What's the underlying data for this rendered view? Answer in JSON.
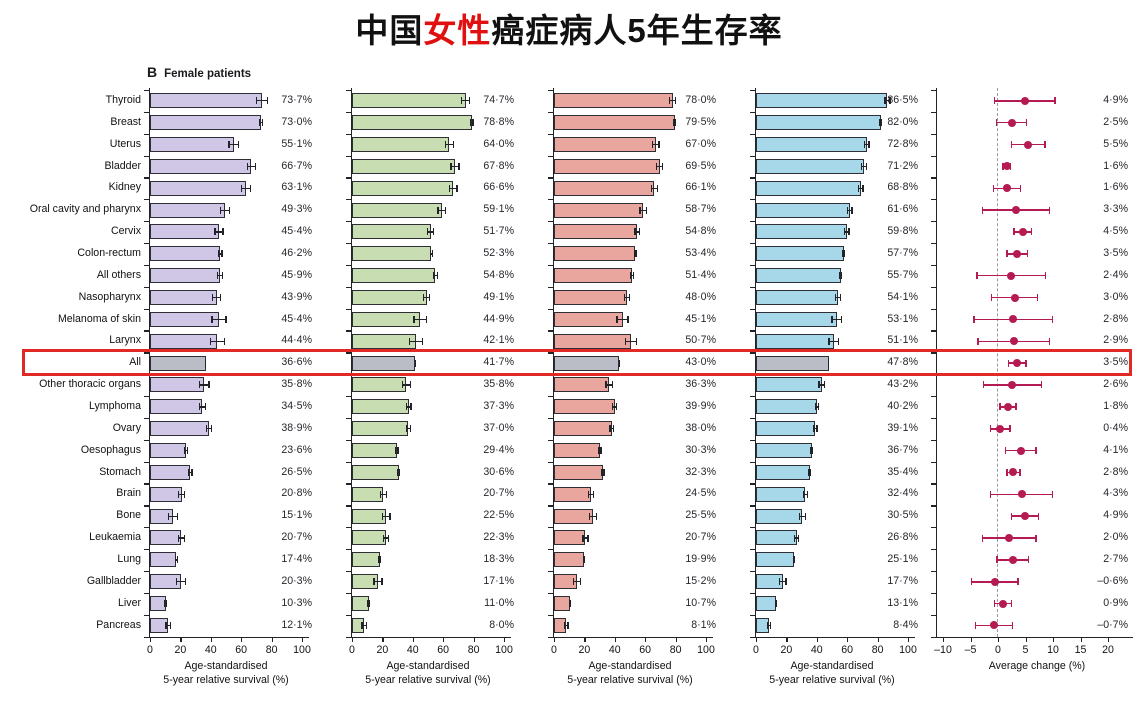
{
  "title": {
    "prefix": "中国",
    "highlight": "女性",
    "suffix": "癌症病人5年生存率"
  },
  "panel_label": {
    "letter": "B",
    "text": "Female patients"
  },
  "chart_data": {
    "type": "bar",
    "orientation": "horizontal",
    "categories": [
      "Thyroid",
      "Breast",
      "Uterus",
      "Bladder",
      "Kidney",
      "Oral cavity and pharynx",
      "Cervix",
      "Colon-rectum",
      "All others",
      "Nasopharynx",
      "Melanoma of skin",
      "Larynx",
      "All",
      "Other thoracic organs",
      "Lymphoma",
      "Ovary",
      "Oesophagus",
      "Stomach",
      "Brain",
      "Bone",
      "Leukaemia",
      "Lung",
      "Gallbladder",
      "Liver",
      "Pancreas"
    ],
    "highlight_row": "All",
    "highlight_row_index": 12,
    "highlight_box_color": "#e12a26",
    "all_row_bar_color": "#babdc5",
    "series": [
      {
        "name": "survival-panel-1",
        "color": "#cfc7e5",
        "values": [
          73.7,
          73.0,
          55.1,
          66.7,
          63.1,
          49.3,
          45.4,
          46.2,
          45.9,
          43.9,
          45.4,
          44.4,
          36.6,
          35.8,
          34.5,
          38.9,
          23.6,
          26.5,
          20.8,
          15.1,
          20.7,
          17.4,
          20.3,
          10.3,
          12.1
        ],
        "err": [
          4,
          1.5,
          3.5,
          3,
          3.5,
          3.5,
          3,
          1.5,
          2,
          3,
          5,
          5,
          0.5,
          3.5,
          2.5,
          2,
          1.5,
          1.5,
          2.5,
          3.5,
          2.5,
          1,
          3.5,
          1,
          2
        ]
      },
      {
        "name": "survival-panel-2",
        "color": "#c9ddb2",
        "values": [
          74.7,
          78.8,
          64.0,
          67.8,
          66.6,
          59.1,
          51.7,
          52.3,
          54.8,
          49.1,
          44.9,
          42.1,
          41.7,
          35.8,
          37.3,
          37.0,
          29.4,
          30.6,
          20.7,
          22.5,
          22.3,
          18.3,
          17.1,
          11.0,
          8.0
        ],
        "err": [
          3,
          1.2,
          3,
          3,
          3,
          3,
          2.5,
          1.2,
          1.8,
          2.5,
          4.5,
          4.5,
          0.4,
          3,
          2,
          1.8,
          1.3,
          1.3,
          2.2,
          3,
          2.2,
          0.9,
          3,
          0.9,
          1.8
        ]
      },
      {
        "name": "survival-panel-3",
        "color": "#e9a69e",
        "values": [
          78.0,
          79.5,
          67.0,
          69.5,
          66.1,
          58.7,
          54.8,
          53.4,
          51.4,
          48.0,
          45.1,
          50.7,
          43.0,
          36.3,
          39.9,
          38.0,
          30.3,
          32.3,
          24.5,
          25.5,
          20.7,
          19.9,
          15.2,
          10.7,
          8.1
        ],
        "err": [
          2.5,
          1,
          2.5,
          2.5,
          2.5,
          2.5,
          2,
          1,
          1.5,
          2.2,
          4,
          4,
          0.4,
          2.5,
          1.8,
          1.6,
          1.1,
          1.1,
          2,
          2.8,
          2,
          0.8,
          2.8,
          0.8,
          1.6
        ]
      },
      {
        "name": "survival-panel-4",
        "color": "#a6d8ea",
        "values": [
          86.5,
          82.0,
          72.8,
          71.2,
          68.8,
          61.6,
          59.8,
          57.7,
          55.7,
          54.1,
          53.1,
          51.1,
          47.8,
          43.2,
          40.2,
          39.1,
          36.7,
          35.4,
          32.4,
          30.5,
          26.8,
          25.1,
          17.7,
          13.1,
          8.4
        ],
        "err": [
          2,
          0.8,
          2,
          2,
          2,
          2,
          1.8,
          0.8,
          1.2,
          2,
          3.5,
          3.5,
          0.3,
          2.2,
          1.5,
          1.4,
          1,
          1,
          1.8,
          2.5,
          1.8,
          0.7,
          2.5,
          0.7,
          1.4
        ]
      }
    ],
    "forest": {
      "name": "average-change",
      "color": "#b51a52",
      "values": [
        4.9,
        2.5,
        5.5,
        1.6,
        1.6,
        3.3,
        4.5,
        3.5,
        2.4,
        3.0,
        2.8,
        2.9,
        3.5,
        2.6,
        1.8,
        0.4,
        4.1,
        2.8,
        4.3,
        4.9,
        2.0,
        2.7,
        -0.6,
        0.9,
        -0.7
      ],
      "ci_low": [
        -0.8,
        -0.4,
        2.3,
        0.8,
        -1.0,
        -3.0,
        2.8,
        1.5,
        -4.0,
        -1.3,
        -4.5,
        -3.8,
        1.8,
        -2.8,
        0.2,
        -1.5,
        1.2,
        1.5,
        -1.5,
        2.3,
        -3.0,
        -0.3,
        -5.0,
        -0.8,
        -4.2
      ],
      "ci_high": [
        10.5,
        5.3,
        8.7,
        2.4,
        4.2,
        9.5,
        6.2,
        5.5,
        8.8,
        7.3,
        10.0,
        9.5,
        5.2,
        8.0,
        3.4,
        2.3,
        7.0,
        4.1,
        10.0,
        7.5,
        7.0,
        5.7,
        3.8,
        2.6,
        2.8
      ],
      "zero_line_style": "dashed"
    },
    "bar_axis": {
      "ticks": [
        0,
        20,
        40,
        60,
        80,
        100
      ],
      "range": [
        0,
        100
      ],
      "label_line1": "Age-standardised",
      "label_line2": "5-year relative survival (%)"
    },
    "forest_axis": {
      "ticks": [
        -10,
        -5,
        0,
        5,
        10,
        15,
        20
      ],
      "range": [
        -12,
        23
      ],
      "label": "Average change (%)"
    }
  }
}
